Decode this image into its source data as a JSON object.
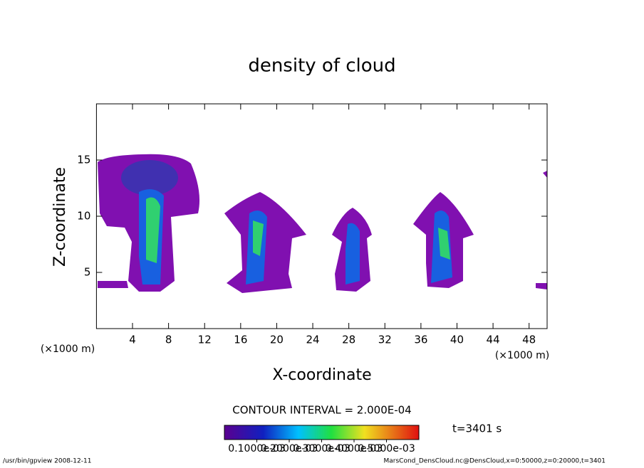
{
  "chart_data": {
    "type": "contour",
    "title": "density of cloud",
    "xlabel": "X-coordinate",
    "ylabel": "Z-coordinate",
    "x_unit": "(×1000 m)",
    "y_unit": "(×1000 m)",
    "xlim": [
      0,
      50
    ],
    "ylim": [
      0,
      20
    ],
    "xticks": [
      4,
      8,
      12,
      16,
      20,
      24,
      28,
      32,
      36,
      40,
      44,
      48
    ],
    "yticks": [
      5,
      10,
      15
    ],
    "contour_interval": "CONTOUR INTERVAL = 2.000E-04",
    "time_label": "t=3401 s",
    "colorbar": {
      "lim": [
        0,
        0.0006
      ],
      "ticks": [
        {
          "value": 0.0001,
          "label": "0.1000e-03"
        },
        {
          "value": 0.0002,
          "label": "0.2000e-03"
        },
        {
          "value": 0.0003,
          "label": "0.3000e-03"
        },
        {
          "value": 0.0004,
          "label": "0.4000e-03"
        },
        {
          "value": 0.0005,
          "label": "0.5000e-03"
        }
      ]
    },
    "footer_left": "/usr/bin/gpview   2008-12-11",
    "footer_right": "MarsCond_DensCloud.nc@DensCloud,x=0:50000,z=0:20000,t=3401"
  }
}
